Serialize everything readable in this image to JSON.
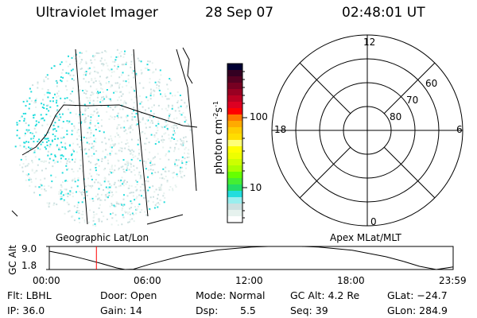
{
  "header": {
    "instrument": "Ultraviolet Imager",
    "date": "28 Sep 07",
    "time": "02:48:01 UT"
  },
  "colorbar": {
    "label": "photon cm^-2 s^-1",
    "label_main": "photon cm",
    "label_exp1": "-2",
    "label_s": "s",
    "label_exp2": "-1",
    "ticks": [
      "100",
      "10"
    ],
    "scale": "log",
    "colors": [
      "#000033",
      "#330022",
      "#550022",
      "#770022",
      "#990022",
      "#bb0022",
      "#dd0022",
      "#ff0000",
      "#ff7700",
      "#ffaa00",
      "#ffcc00",
      "#ffdd00",
      "#ffff77",
      "#ffff00",
      "#eeff00",
      "#ccff00",
      "#aaff00",
      "#66ff00",
      "#44ee33",
      "#22dd66",
      "#22dddd",
      "#99eeee",
      "#cce0e0",
      "#e6f2ee",
      "#ffffff"
    ]
  },
  "left_panel": {
    "label": "Geographic Lat/Lon",
    "dot_color": "#22dddd"
  },
  "right_panel": {
    "label": "Apex MLat/MLT",
    "mlt_labels": {
      "top": "12",
      "left": "18",
      "right": "6",
      "bottom": "0"
    },
    "lat_labels": [
      "60",
      "70",
      "80"
    ]
  },
  "chart_data": {
    "type": "line",
    "ylabel": "GC Alt",
    "yticks": [
      "9.0",
      "1.8"
    ],
    "ylim": [
      1.8,
      9.0
    ],
    "xticks": [
      "00:00",
      "06:00",
      "12:00",
      "18:00",
      "23:59"
    ],
    "xlim_hours": [
      0,
      24
    ],
    "current_time_marker": "02:48",
    "marker_color": "#ff0000",
    "x_hours": [
      0,
      1,
      2,
      3,
      4,
      4.5,
      5,
      6,
      8,
      10,
      12,
      13,
      14,
      15,
      16,
      18,
      20,
      21,
      22,
      23,
      23.5,
      24
    ],
    "values": [
      7.5,
      6.5,
      5.2,
      3.8,
      2.3,
      1.8,
      1.9,
      3.5,
      6.2,
      7.9,
      8.8,
      9.0,
      9.0,
      9.0,
      8.8,
      7.8,
      5.8,
      4.4,
      2.8,
      1.8,
      2.2,
      2.6
    ]
  },
  "info": {
    "flt": "Flt: LBHL",
    "ip": "IP: 36.0",
    "door": "Door: Open",
    "gain": "Gain: 14",
    "mode": "Mode: Normal",
    "dsp_label": "Dsp:",
    "dsp_value": "5.5",
    "gc_alt": "GC Alt: 4.2 Re",
    "seq": "Seq: 39",
    "glat": "GLat: −24.7",
    "glon": "GLon: 284.9"
  }
}
